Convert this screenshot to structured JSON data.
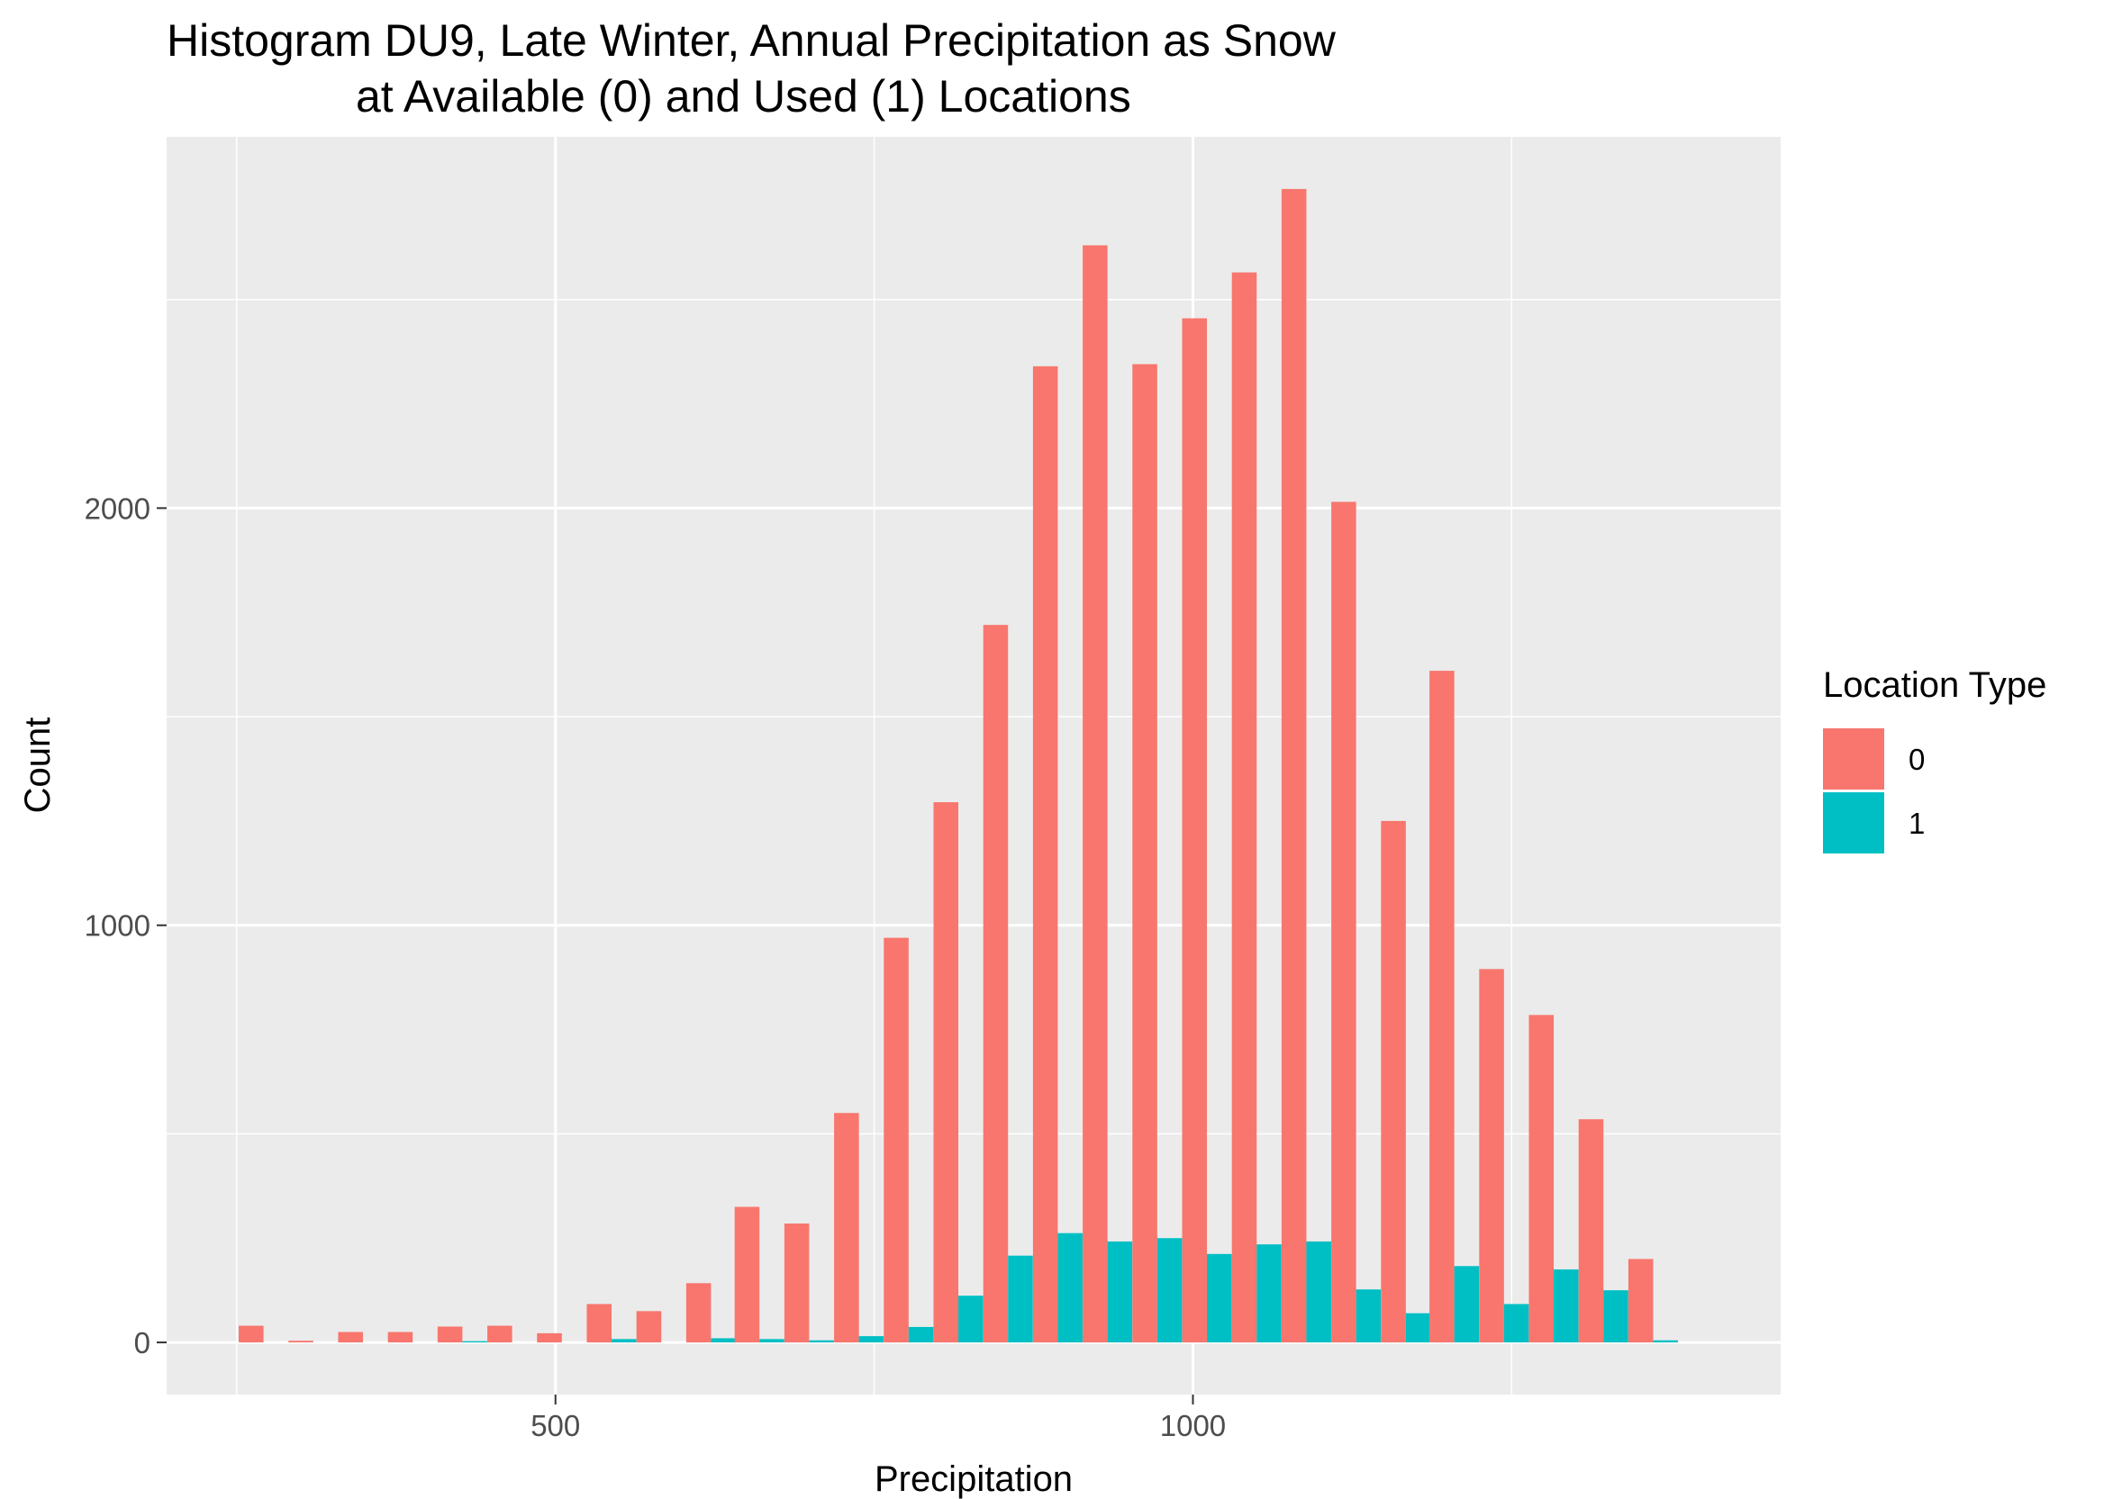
{
  "chart_data": {
    "type": "bar",
    "title": "Histogram DU9, Late Winter, Annual Precipitation as Snow",
    "subtitle": "at Available (0) and Used (1) Locations",
    "xlabel": "Precipitation",
    "ylabel": "Count",
    "xlim": [
      195,
      1461
    ],
    "ylim": [
      -125,
      2890
    ],
    "x_ticks": [
      {
        "value": 500,
        "label": "500"
      },
      {
        "value": 1000,
        "label": "1000"
      }
    ],
    "x_minor": [
      250,
      750,
      1250
    ],
    "y_ticks": [
      {
        "value": 0,
        "label": "0"
      },
      {
        "value": 1000,
        "label": "1000"
      },
      {
        "value": 2000,
        "label": "2000"
      }
    ],
    "y_minor": [
      500,
      1500,
      2500
    ],
    "bin_width": 38.9,
    "x": [
      271,
      310,
      349,
      388,
      427,
      466,
      505,
      544,
      583,
      622,
      660,
      699,
      738,
      777,
      816,
      855,
      894,
      933,
      972,
      1011,
      1050,
      1089,
      1128,
      1167,
      1205,
      1244,
      1283,
      1322,
      1361
    ],
    "legend": {
      "title": "Location Type",
      "position": "right"
    },
    "series": [
      {
        "name": "0",
        "color": "#F8766D",
        "values": [
          40,
          4,
          25,
          25,
          38,
          40,
          22,
          92,
          75,
          142,
          325,
          285,
          550,
          970,
          1295,
          1720,
          2340,
          2630,
          2345,
          2455,
          2565,
          2765,
          2015,
          1250,
          1610,
          895,
          785,
          535,
          200
        ]
      },
      {
        "name": "1",
        "color": "#00BFC4",
        "values": [
          0,
          0,
          0,
          0,
          3,
          0,
          0,
          8,
          0,
          10,
          8,
          5,
          15,
          37,
          112,
          208,
          262,
          242,
          250,
          212,
          235,
          242,
          127,
          70,
          183,
          92,
          175,
          125,
          5
        ]
      }
    ],
    "colors": {
      "panel_bg": "#EBEBEB",
      "grid": "#FFFFFF",
      "tick_text": "#4D4D4D",
      "tick_mark": "#333333"
    }
  }
}
